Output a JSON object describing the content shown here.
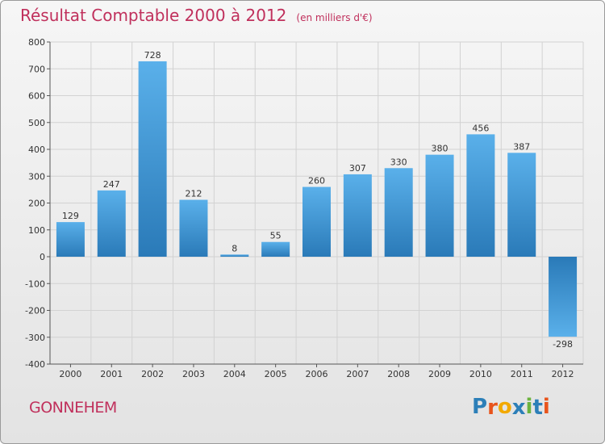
{
  "header": {
    "title": "Résultat Comptable 2000 à 2012",
    "subtitle": "(en milliers d'€)"
  },
  "place": {
    "name": "GONNEHEM"
  },
  "brand": {
    "name": "Proxiti",
    "letter_colors": [
      "#2c7fb8",
      "#e8541c",
      "#f2a900",
      "#2c7fb8",
      "#6cb33f",
      "#2c7fb8",
      "#e8541c"
    ]
  },
  "colors": {
    "accent": "#c0305c",
    "bar_light": "#5ab0ea",
    "bar_dark": "#2a7ab8",
    "grid": "#d0d0d0",
    "axis": "#555555"
  },
  "chart_data": {
    "type": "bar",
    "title": "Résultat Comptable 2000 à 2012",
    "subtitle": "(en milliers d'€)",
    "xlabel": "",
    "ylabel": "",
    "categories": [
      "2000",
      "2001",
      "2002",
      "2003",
      "2004",
      "2005",
      "2006",
      "2007",
      "2008",
      "2009",
      "2010",
      "2011",
      "2012"
    ],
    "values": [
      129,
      247,
      728,
      212,
      8,
      55,
      260,
      307,
      330,
      380,
      456,
      387,
      -298
    ],
    "ylim": [
      -400,
      800
    ],
    "yticks": [
      800,
      700,
      600,
      500,
      400,
      300,
      200,
      100,
      0,
      -100,
      -200,
      -300,
      -400
    ],
    "grid": true,
    "legend": "none"
  }
}
